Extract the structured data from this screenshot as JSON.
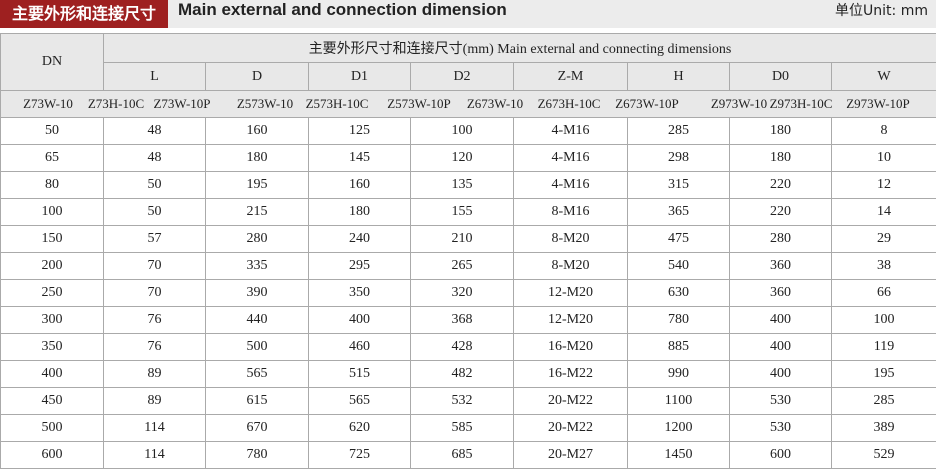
{
  "header": {
    "badge": "主要外形和连接尺寸",
    "title": "Main external and connection dimension",
    "unit": "单位Unit: mm"
  },
  "table": {
    "corner": "DN",
    "group_title": "主要外形尺寸和连接尺寸(mm) Main external and connecting dimensions",
    "columns": [
      "L",
      "D",
      "D1",
      "D2",
      "Z-M",
      "H",
      "D0",
      "W"
    ],
    "models": [
      "Z73W-10",
      "Z73H-10C",
      "Z73W-10P",
      "Z573W-10",
      "Z573H-10C",
      "Z573W-10P",
      "Z673W-10",
      "Z673H-10C",
      "Z673W-10P",
      "Z973W-10",
      "Z973H-10C",
      "Z973W-10P"
    ],
    "rows": [
      [
        50,
        48,
        160,
        125,
        100,
        "4-M16",
        285,
        180,
        8
      ],
      [
        65,
        48,
        180,
        145,
        120,
        "4-M16",
        298,
        180,
        10
      ],
      [
        80,
        50,
        195,
        160,
        135,
        "4-M16",
        315,
        220,
        12
      ],
      [
        100,
        50,
        215,
        180,
        155,
        "8-M16",
        365,
        220,
        14
      ],
      [
        150,
        57,
        280,
        240,
        210,
        "8-M20",
        475,
        280,
        29
      ],
      [
        200,
        70,
        335,
        295,
        265,
        "8-M20",
        540,
        360,
        38
      ],
      [
        250,
        70,
        390,
        350,
        320,
        "12-M20",
        630,
        360,
        66
      ],
      [
        300,
        76,
        440,
        400,
        368,
        "12-M20",
        780,
        400,
        100
      ],
      [
        350,
        76,
        500,
        460,
        428,
        "16-M20",
        885,
        400,
        119
      ],
      [
        400,
        89,
        565,
        515,
        482,
        "16-M22",
        990,
        400,
        195
      ],
      [
        450,
        89,
        615,
        565,
        532,
        "20-M22",
        1100,
        530,
        285
      ],
      [
        500,
        114,
        670,
        620,
        585,
        "20-M22",
        1200,
        530,
        389
      ],
      [
        600,
        114,
        780,
        725,
        685,
        "20-M27",
        1450,
        600,
        529
      ]
    ]
  }
}
